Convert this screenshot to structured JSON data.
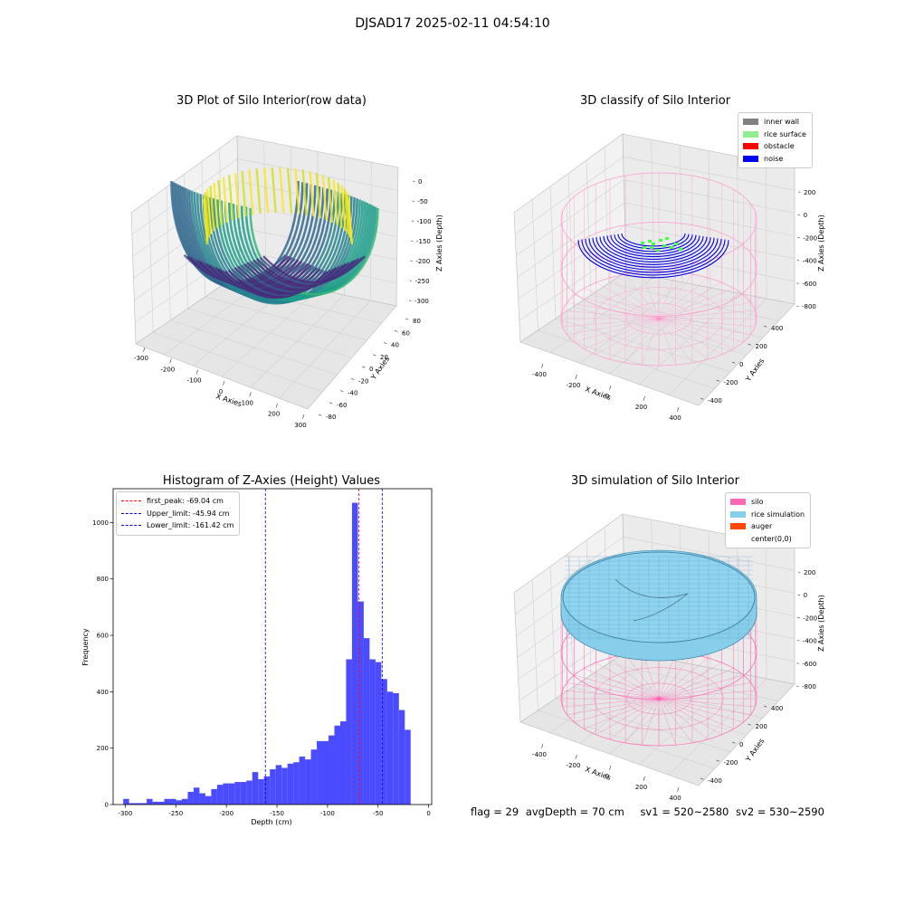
{
  "suptitle": "DJSAD17 2025-02-11 04:54:10",
  "panels": {
    "raw": {
      "title": "3D Plot of Silo Interior(row data)",
      "xlabel": "X Axies",
      "ylabel": "Y Axies",
      "zlabel": "Z Axies (Depth)",
      "xticks": [
        "-300",
        "-200",
        "-100",
        "0",
        "100",
        "200",
        "300"
      ],
      "yticks": [
        "-80",
        "-60",
        "-40",
        "-20",
        "0",
        "20",
        "40",
        "60",
        "80"
      ],
      "zticks": [
        "0",
        "-50",
        "-100",
        "-150",
        "-200",
        "-250",
        "-300"
      ]
    },
    "classify": {
      "title": "3D classify of Silo Interior",
      "xlabel": "X Axies",
      "ylabel": "Y Axies",
      "zlabel": "Z Axies (Depth)",
      "xticks": [
        "-400",
        "-200",
        "0",
        "200",
        "400"
      ],
      "yticks": [
        "400",
        "200",
        "0",
        "-200",
        "-400"
      ],
      "zticks": [
        "200",
        "0",
        "-200",
        "-400",
        "-600",
        "-800"
      ],
      "legend": [
        {
          "label": "inner wall",
          "color": "#808080"
        },
        {
          "label": "rice surface",
          "color": "#90ee90"
        },
        {
          "label": "obstacle",
          "color": "#ff0000"
        },
        {
          "label": "noise",
          "color": "#0000ff"
        }
      ]
    },
    "simulation": {
      "title": "3D simulation of Silo Interior",
      "xlabel": "X Axies",
      "ylabel": "Y Axies",
      "zlabel": "Z Axies (Depth)",
      "xticks": [
        "-400",
        "-200",
        "0",
        "200",
        "400"
      ],
      "yticks": [
        "400",
        "200",
        "0",
        "-200",
        "-400"
      ],
      "zticks": [
        "200",
        "0",
        "-200",
        "-400",
        "-600",
        "-800"
      ],
      "legend": [
        {
          "label": "silo",
          "color": "#ff69b4"
        },
        {
          "label": "rice simulation",
          "color": "#87ceeb"
        },
        {
          "label": "auger",
          "color": "#ff4500"
        },
        {
          "label": "center(0,0)",
          "color": "#ffffff"
        }
      ]
    }
  },
  "info": {
    "flag": "flag = 29",
    "avg": "avgDepth = 70 cm",
    "sv1": "sv1 = 520~2580",
    "sv2": "sv2 = 530~2590"
  },
  "chart_data": {
    "type": "bar",
    "title": "Histogram of Z-Axies (Height) Values",
    "xlabel": "Depth (cm)",
    "ylabel": "Frequency",
    "xlim": [
      -312,
      3
    ],
    "ylim": [
      0,
      1120
    ],
    "xticks": [
      -300,
      -250,
      -200,
      -150,
      -100,
      -50,
      0
    ],
    "yticks": [
      0,
      200,
      400,
      600,
      800,
      1000
    ],
    "bin_width": 5.8,
    "bin_start": -302,
    "values": [
      20,
      5,
      5,
      5,
      20,
      10,
      10,
      20,
      20,
      15,
      20,
      45,
      60,
      40,
      30,
      55,
      70,
      75,
      75,
      80,
      80,
      85,
      115,
      90,
      100,
      125,
      140,
      130,
      145,
      150,
      170,
      160,
      195,
      225,
      225,
      245,
      280,
      295,
      515,
      1070,
      720,
      590,
      515,
      505,
      445,
      400,
      395,
      335,
      265
    ],
    "lines": [
      {
        "name": "first_peak: -69.04 cm",
        "value": -69.04,
        "color": "#ff0000"
      },
      {
        "name": "Upper_limit: -45.94 cm",
        "value": -45.94,
        "color": "#0000cc"
      },
      {
        "name": "Lower_limit: -161.42 cm",
        "value": -161.42,
        "color": "#0000cc"
      }
    ],
    "bar_color": "#4b4bff"
  }
}
